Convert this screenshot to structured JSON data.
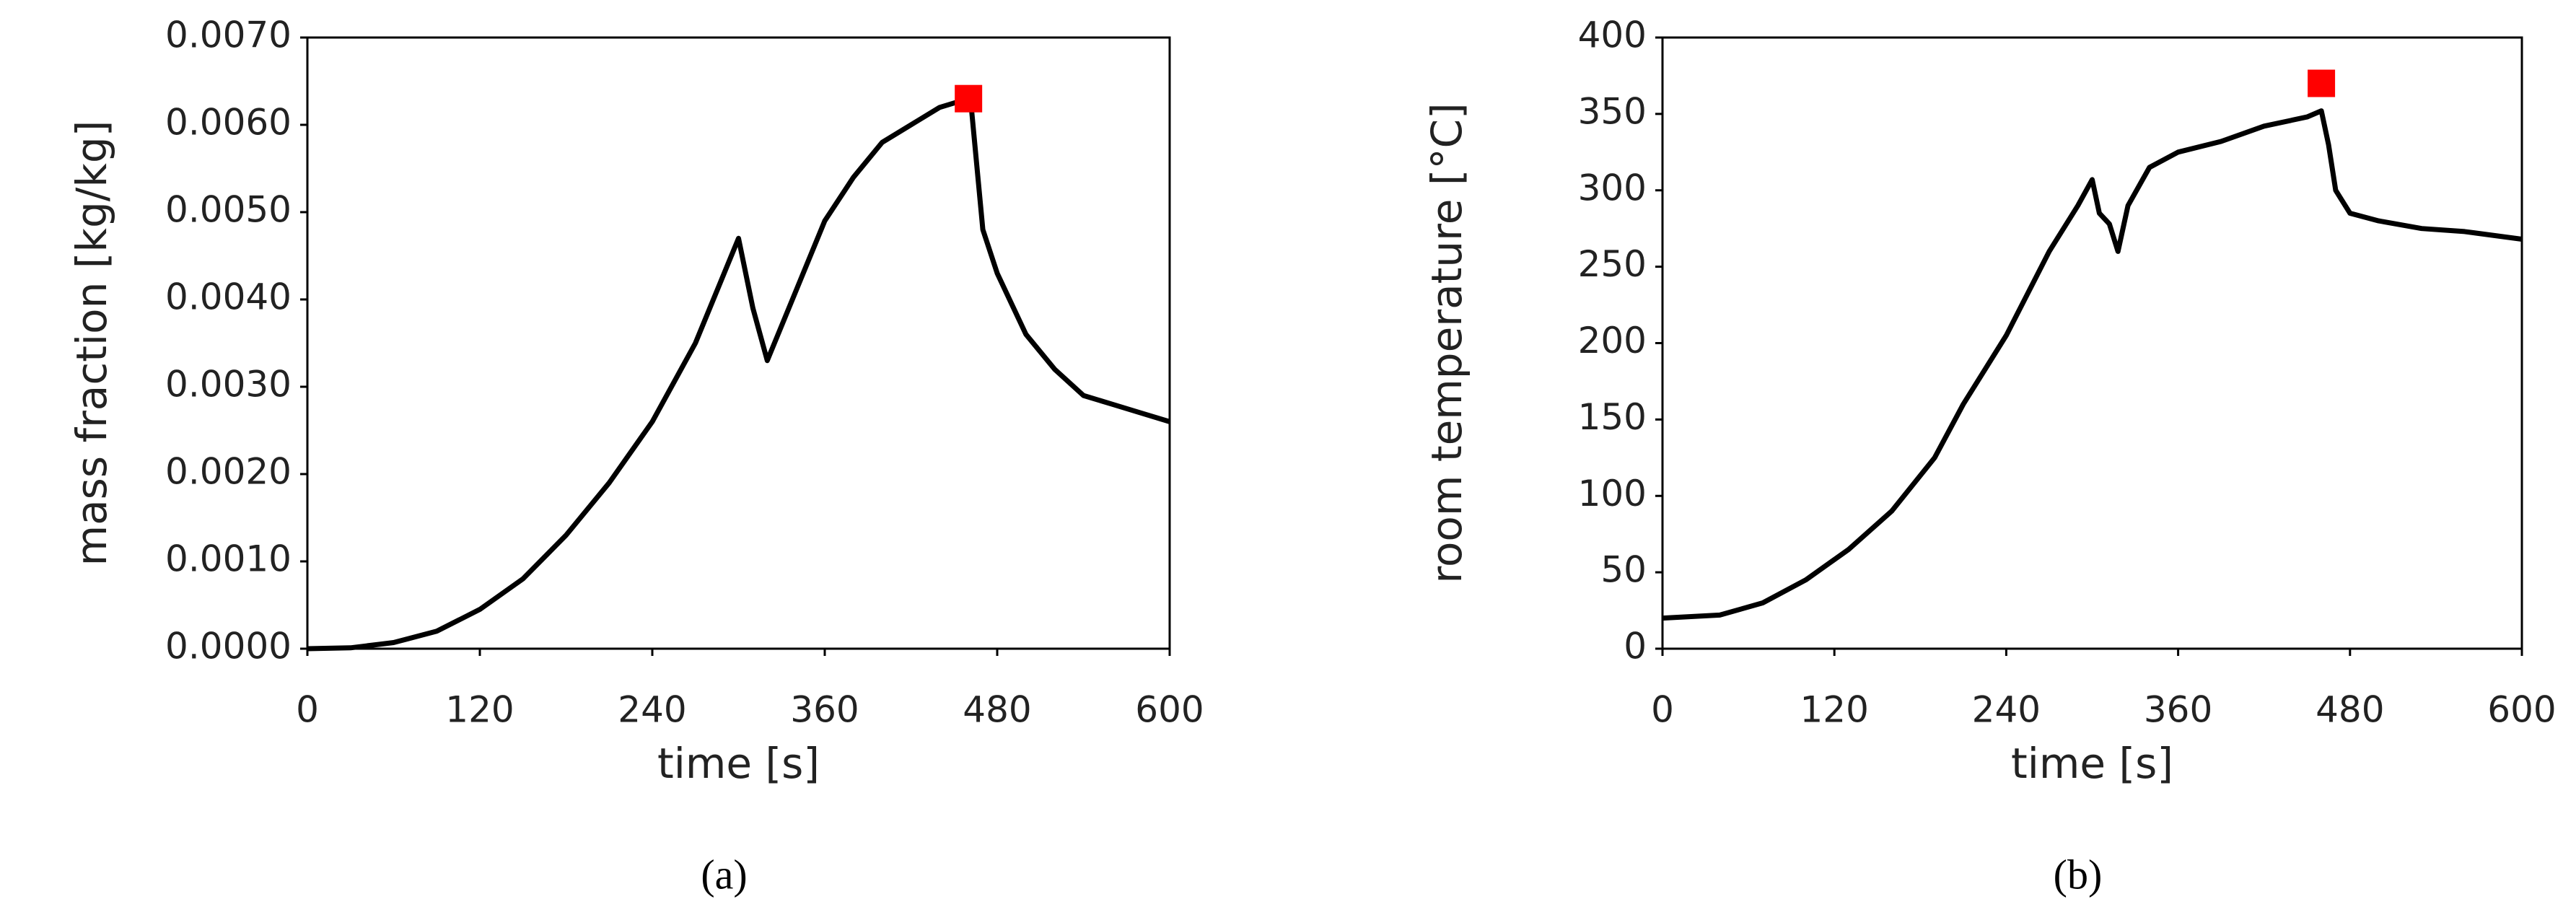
{
  "chart_data": [
    {
      "type": "line",
      "caption": "(a)",
      "x_label": "time [s]",
      "y_label": "mass fraction [kg/kg]",
      "xlim": [
        0,
        600
      ],
      "xticks": [
        0,
        120,
        240,
        360,
        480,
        600
      ],
      "ylim": [
        0,
        0.007
      ],
      "yticks": [
        {
          "value": 0,
          "label": "0.0000"
        },
        {
          "value": 0.001,
          "label": "0.0010"
        },
        {
          "value": 0.002,
          "label": "0.0020"
        },
        {
          "value": 0.003,
          "label": "0.0030"
        },
        {
          "value": 0.004,
          "label": "0.0040"
        },
        {
          "value": 0.005,
          "label": "0.0050"
        },
        {
          "value": 0.006,
          "label": "0.0060"
        },
        {
          "value": 0.007,
          "label": "0.0070"
        }
      ],
      "series": [
        {
          "color": "#000000",
          "x": [
            0,
            30,
            60,
            90,
            120,
            150,
            180,
            210,
            240,
            270,
            290,
            300,
            310,
            320,
            340,
            360,
            380,
            400,
            420,
            440,
            460,
            462,
            470,
            480,
            500,
            520,
            540,
            560,
            580,
            600
          ],
          "values": [
            0,
            1e-05,
            7e-05,
            0.0002,
            0.00045,
            0.0008,
            0.0013,
            0.0019,
            0.0026,
            0.0035,
            0.0043,
            0.0047,
            0.0039,
            0.0033,
            0.0041,
            0.0049,
            0.0054,
            0.0058,
            0.006,
            0.0062,
            0.0063,
            0.0062,
            0.0048,
            0.0043,
            0.0036,
            0.0032,
            0.0029,
            0.0028,
            0.0027,
            0.0026
          ]
        },
        {
          "type": "scatter",
          "color": "#ff0000",
          "x": [
            460
          ],
          "values": [
            0.0063
          ]
        }
      ]
    },
    {
      "type": "line",
      "caption": "(b)",
      "x_label": "time [s]",
      "y_label": "room temperature [°C]",
      "xlim": [
        0,
        600
      ],
      "xticks": [
        0,
        120,
        240,
        360,
        480,
        600
      ],
      "ylim": [
        0,
        400
      ],
      "yticks": [
        0,
        50,
        100,
        150,
        200,
        250,
        300,
        350,
        400
      ],
      "series": [
        {
          "color": "#000000",
          "x": [
            0,
            40,
            70,
            100,
            130,
            160,
            190,
            210,
            240,
            270,
            290,
            300,
            305,
            312,
            318,
            325,
            340,
            360,
            390,
            420,
            450,
            460,
            465,
            470,
            480,
            500,
            530,
            560,
            600
          ],
          "values": [
            20,
            22,
            30,
            45,
            65,
            90,
            125,
            160,
            205,
            260,
            290,
            307,
            285,
            278,
            260,
            290,
            315,
            325,
            332,
            342,
            348,
            352,
            330,
            300,
            285,
            280,
            275,
            273,
            268
          ]
        },
        {
          "type": "scatter",
          "color": "#ff0000",
          "x": [
            460
          ],
          "values": [
            370
          ]
        }
      ]
    }
  ]
}
